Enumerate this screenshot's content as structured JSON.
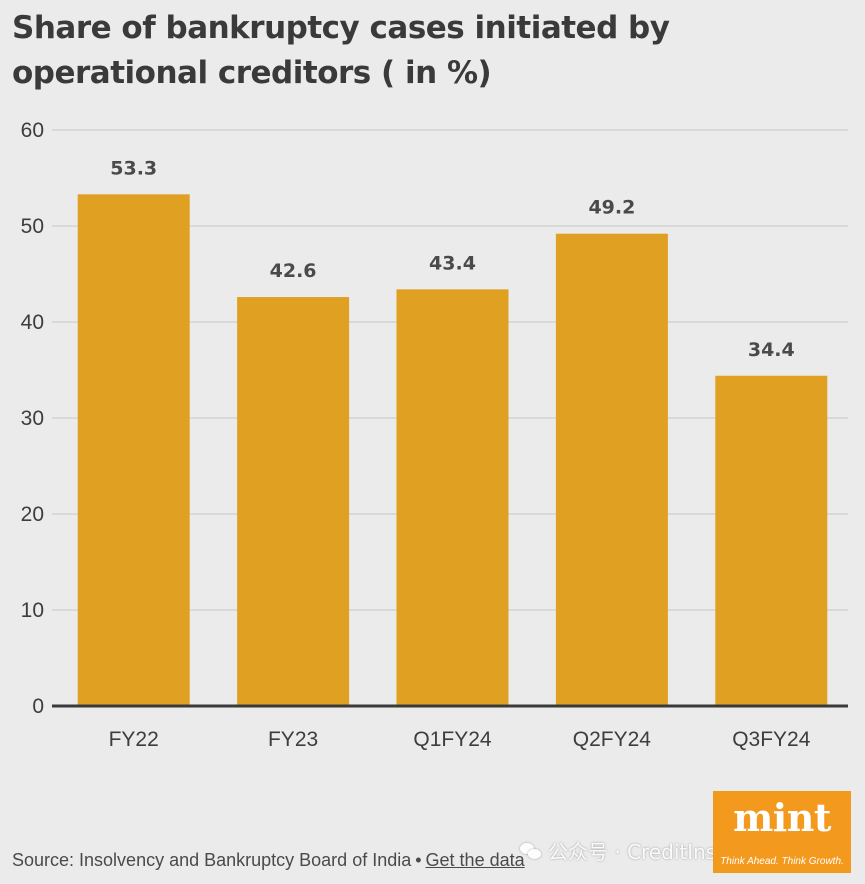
{
  "title": "Share of bankruptcy cases initiated by operational creditors ( in %)",
  "source": {
    "text": "Source: Insolvency and Bankruptcy Board of India",
    "separator": "•",
    "link": "Get the data"
  },
  "logo": {
    "word": "mint",
    "tagline": "Think Ahead. Think Growth."
  },
  "watermark": "公众号 · CreditInsurance",
  "colors": {
    "background": "#ebebeb",
    "bar": "#e0a122",
    "axis": "#3a3a3a",
    "grid": "#d3d3d3",
    "text": "#3d3d3d",
    "logo": "#f39a1e"
  },
  "chart_data": {
    "type": "bar",
    "categories": [
      "FY22",
      "FY23",
      "Q1FY24",
      "Q2FY24",
      "Q3FY24"
    ],
    "values": [
      53.3,
      42.6,
      43.4,
      49.2,
      34.4
    ],
    "data_labels": [
      "53.3",
      "42.6",
      "43.4",
      "49.2",
      "34.4"
    ],
    "ylim": [
      0,
      60
    ],
    "yticks": [
      0,
      10,
      20,
      30,
      40,
      50,
      60
    ],
    "title": "Share of bankruptcy cases initiated by operational creditors ( in %)",
    "xlabel": "",
    "ylabel": "",
    "grid": true,
    "legend": "none"
  }
}
